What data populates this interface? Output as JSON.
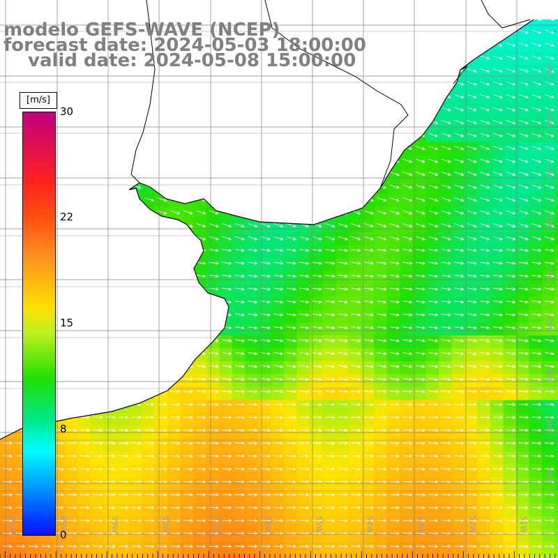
{
  "title": {
    "line1": "modelo GEFS-WAVE (NCEP)",
    "line2": "forecast date: 2024-05-03 18:00:00",
    "line3": "valid date: 2024-05-08 15:00:00"
  },
  "colorbar": {
    "units": "[m/s]",
    "ticks": [
      "30",
      "22",
      "15",
      "8",
      "0"
    ],
    "tick_values": [
      30,
      22,
      15,
      8,
      0
    ]
  },
  "map": {
    "variable": "wind speed with direction arrows",
    "lat_labels": [
      "32S",
      "33S",
      "34S",
      "35S",
      "36S",
      "37S",
      "38S",
      "39S",
      "40S"
    ],
    "lon_labels": [
      "61W",
      "60W",
      "59W",
      "58W",
      "57W",
      "56W",
      "55W",
      "54W",
      "53W",
      "52W",
      "51W"
    ],
    "colors": {
      "land": "#ffffff",
      "grid": "#808080",
      "coast": "#000000",
      "arrow": "#ffffff"
    }
  },
  "chart_data": {
    "type": "heatmap",
    "title": "modelo GEFS-WAVE (NCEP)",
    "colorbar_range": [
      0,
      30
    ],
    "colorbar_units": "[m/s]",
    "dominant_wind_direction": "from the west/north-west toward the east/south-east",
    "regions": [
      {
        "area": "northeast offshore (near 32-34S, 52-51W)",
        "approx_speed": 9
      },
      {
        "area": "central shelf (35-37S, 57-53W)",
        "approx_speed": 13
      },
      {
        "area": "south band (38-39S, 61-54W)",
        "approx_speed": 18
      },
      {
        "area": "southwest corner (39-40S, 59-57W)",
        "approx_speed": 20
      }
    ]
  }
}
